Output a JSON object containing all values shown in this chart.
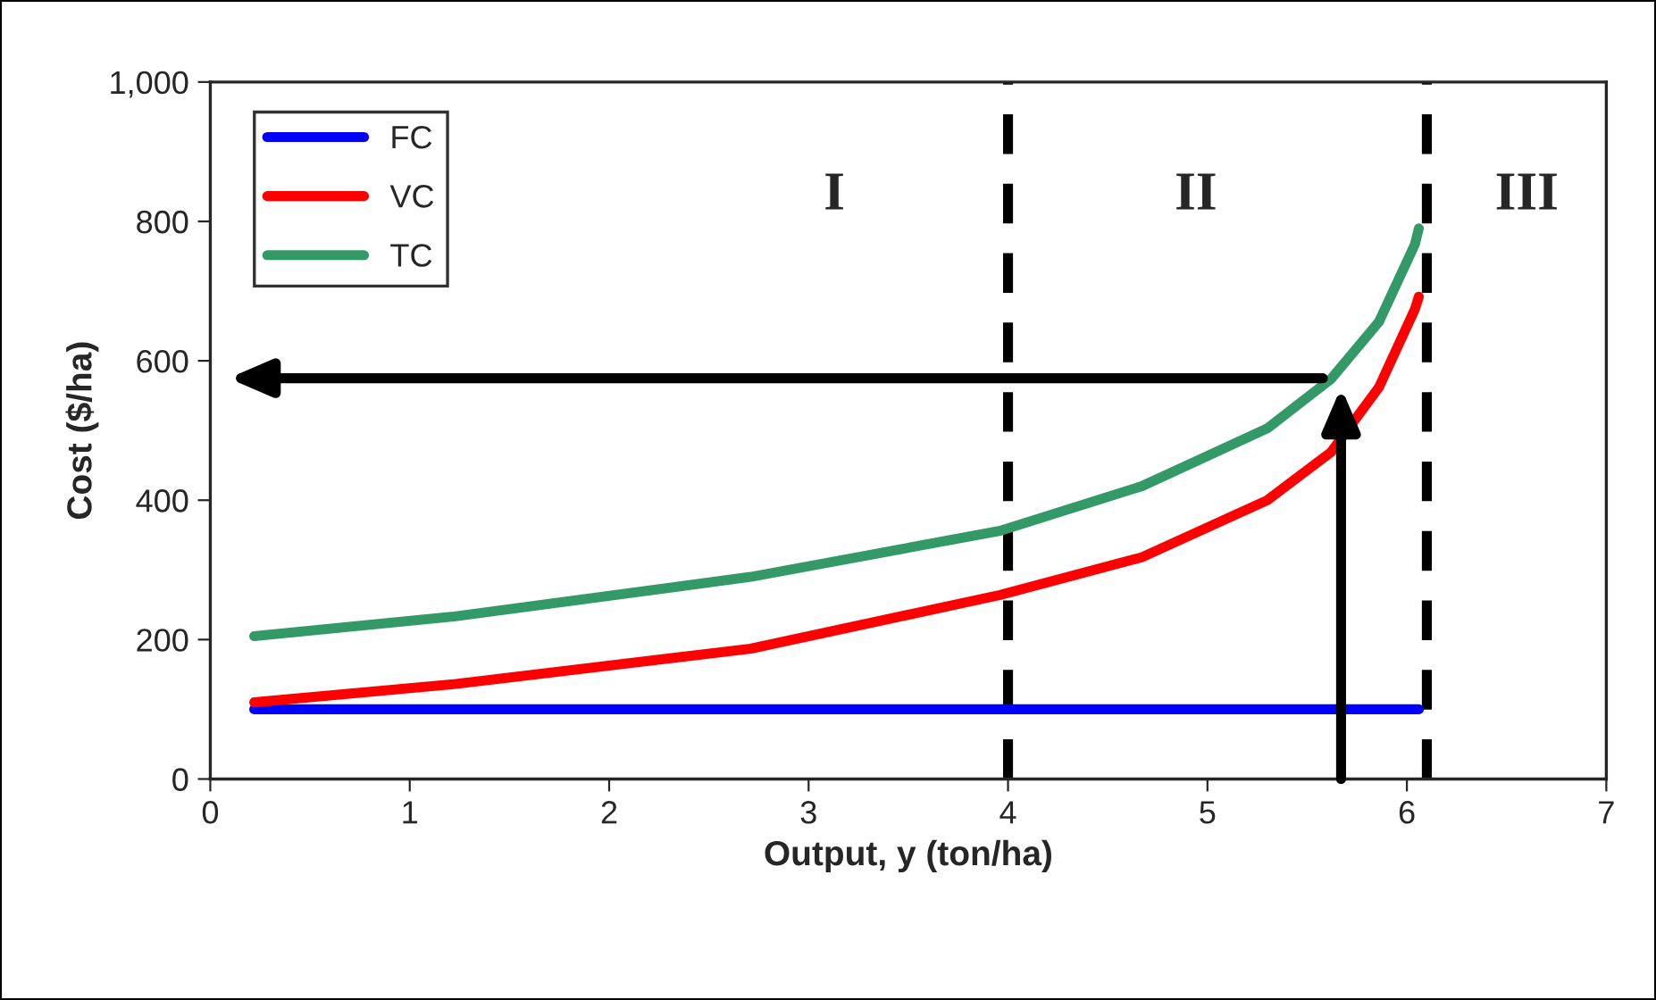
{
  "chart_data": {
    "type": "line",
    "xlabel": "Output, y (ton/ha)",
    "ylabel": "Cost ($/ha)",
    "series": [
      {
        "name": "FC",
        "color": "#0000ff",
        "x": [
          0.22,
          6.06
        ],
        "values": [
          100,
          100
        ]
      },
      {
        "name": "VC",
        "color": "#ff0000",
        "x": [
          0.22,
          1.22,
          2.71,
          3.96,
          4.67,
          5.3,
          5.62,
          5.86,
          6.04,
          6.06
        ],
        "values": [
          110,
          136,
          187,
          264,
          318,
          400,
          469,
          562,
          674,
          692
        ]
      },
      {
        "name": "TC",
        "color": "#339966",
        "x": [
          0.22,
          1.22,
          2.71,
          3.96,
          4.67,
          5.3,
          5.62,
          5.86,
          6.04,
          6.06
        ],
        "values": [
          205,
          233,
          290,
          356,
          420,
          503,
          574,
          656,
          767,
          790
        ]
      }
    ],
    "xlim": [
      0,
      7
    ],
    "xticks": [
      0,
      1,
      2,
      3,
      4,
      5,
      6,
      7
    ],
    "ylim": [
      0,
      1000
    ],
    "yticks": [
      0,
      200,
      400,
      600,
      800,
      {
        "value": 1000,
        "label": "1,000"
      }
    ],
    "ref_lines": [
      {
        "axis": "x",
        "value": 4,
        "color": "#000000",
        "line_style": "dashed"
      },
      {
        "axis": "x",
        "value": 6.1,
        "color": "#000000",
        "line_style": "dashed"
      }
    ],
    "annotations": [
      "I",
      "II",
      "III"
    ],
    "legend": "top left",
    "grid": false,
    "marker": "none",
    "line_style": "solid"
  }
}
